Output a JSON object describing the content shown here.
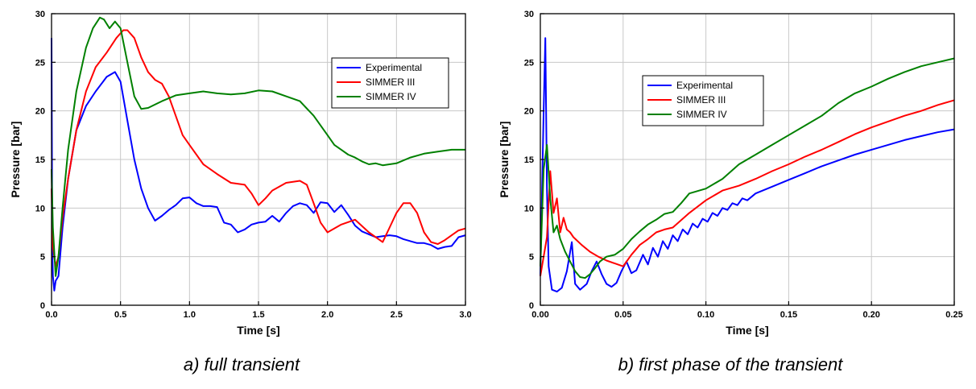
{
  "colors": {
    "Experimental": "#0000ff",
    "SIMMER III": "#ff0000",
    "SIMMER IV": "#008000",
    "grid": "#c8c8c8"
  },
  "chart_data": [
    {
      "type": "line",
      "caption": "a) full transient",
      "xlabel": "Time [s]",
      "ylabel": "Pressure [bar]",
      "xlim": [
        0,
        3.0
      ],
      "ylim": [
        0,
        30
      ],
      "xticks": [
        "0.0",
        "0.5",
        "1.0",
        "1.5",
        "2.0",
        "2.5",
        "3.0"
      ],
      "yticks": [
        "0",
        "5",
        "10",
        "15",
        "20",
        "25",
        "30"
      ],
      "grid": true,
      "legend": "upper-right",
      "series": [
        {
          "name": "Experimental",
          "x": [
            0,
            0.005,
            0.01,
            0.02,
            0.03,
            0.05,
            0.08,
            0.12,
            0.18,
            0.25,
            0.32,
            0.4,
            0.46,
            0.5,
            0.55,
            0.6,
            0.65,
            0.7,
            0.75,
            0.8,
            0.85,
            0.9,
            0.95,
            1.0,
            1.05,
            1.1,
            1.15,
            1.2,
            1.25,
            1.3,
            1.35,
            1.4,
            1.45,
            1.5,
            1.55,
            1.6,
            1.65,
            1.7,
            1.75,
            1.8,
            1.85,
            1.9,
            1.95,
            2.0,
            2.05,
            2.1,
            2.15,
            2.2,
            2.25,
            2.3,
            2.35,
            2.4,
            2.45,
            2.5,
            2.55,
            2.6,
            2.65,
            2.7,
            2.75,
            2.8,
            2.85,
            2.9,
            2.95,
            3.0
          ],
          "y": [
            27.5,
            6,
            3,
            1.5,
            2.5,
            3,
            8,
            13,
            18,
            20.5,
            22,
            23.5,
            24,
            23,
            19,
            15,
            12,
            10,
            8.7,
            9.2,
            9.8,
            10.3,
            11,
            11.1,
            10.5,
            10.2,
            10.2,
            10.1,
            8.5,
            8.3,
            7.5,
            7.8,
            8.3,
            8.5,
            8.6,
            9.2,
            8.6,
            9.5,
            10.2,
            10.5,
            10.3,
            9.5,
            10.6,
            10.5,
            9.6,
            10.3,
            9.3,
            8.2,
            7.6,
            7.3,
            7.0,
            7.1,
            7.2,
            7.1,
            6.8,
            6.6,
            6.4,
            6.4,
            6.2,
            5.8,
            6.0,
            6.1,
            7.0,
            7.2
          ]
        },
        {
          "name": "SIMMER III",
          "x": [
            0,
            0.01,
            0.03,
            0.05,
            0.08,
            0.12,
            0.18,
            0.25,
            0.32,
            0.4,
            0.47,
            0.52,
            0.55,
            0.6,
            0.65,
            0.7,
            0.75,
            0.8,
            0.85,
            0.9,
            0.95,
            1.0,
            1.1,
            1.2,
            1.3,
            1.4,
            1.45,
            1.5,
            1.55,
            1.6,
            1.7,
            1.8,
            1.85,
            1.9,
            1.95,
            2.0,
            2.1,
            2.2,
            2.3,
            2.4,
            2.45,
            2.5,
            2.55,
            2.6,
            2.65,
            2.7,
            2.75,
            2.8,
            2.85,
            2.9,
            2.95,
            3.0
          ],
          "y": [
            12,
            6,
            4,
            5,
            9,
            13,
            18,
            22,
            24.5,
            26,
            27.5,
            28.3,
            28.3,
            27.5,
            25.5,
            24,
            23.2,
            22.8,
            21.5,
            19.5,
            17.5,
            16.5,
            14.5,
            13.5,
            12.6,
            12.4,
            11.5,
            10.3,
            11,
            11.8,
            12.6,
            12.8,
            12.4,
            10.5,
            8.5,
            7.5,
            8.3,
            8.8,
            7.5,
            6.5,
            8.0,
            9.5,
            10.5,
            10.5,
            9.5,
            7.5,
            6.5,
            6.3,
            6.7,
            7.2,
            7.7,
            7.9
          ]
        },
        {
          "name": "SIMMER IV",
          "x": [
            0,
            0.01,
            0.03,
            0.05,
            0.08,
            0.12,
            0.18,
            0.25,
            0.3,
            0.35,
            0.38,
            0.42,
            0.46,
            0.5,
            0.55,
            0.6,
            0.65,
            0.7,
            0.8,
            0.9,
            1.0,
            1.1,
            1.2,
            1.3,
            1.4,
            1.5,
            1.6,
            1.7,
            1.8,
            1.9,
            2.0,
            2.05,
            2.1,
            2.15,
            2.2,
            2.25,
            2.3,
            2.35,
            2.4,
            2.5,
            2.6,
            2.7,
            2.8,
            2.9,
            3.0
          ],
          "y": [
            14,
            8,
            3,
            5,
            10,
            16,
            22,
            26.5,
            28.5,
            29.6,
            29.4,
            28.5,
            29.2,
            28.5,
            25,
            21.5,
            20.2,
            20.3,
            21,
            21.6,
            21.8,
            22,
            21.8,
            21.7,
            21.8,
            22.1,
            22,
            21.5,
            21,
            19.5,
            17.5,
            16.5,
            16,
            15.5,
            15.2,
            14.8,
            14.5,
            14.6,
            14.4,
            14.6,
            15.2,
            15.6,
            15.8,
            16,
            16
          ]
        }
      ]
    },
    {
      "type": "line",
      "caption": "b) first phase of the transient",
      "xlabel": "Time [s]",
      "ylabel": "Pressure [bar]",
      "xlim": [
        0,
        0.25
      ],
      "ylim": [
        0,
        30
      ],
      "xticks": [
        "0.00",
        "0.05",
        "0.10",
        "0.15",
        "0.20",
        "0.25"
      ],
      "yticks": [
        "0",
        "5",
        "10",
        "15",
        "20",
        "25",
        "30"
      ],
      "grid": true,
      "legend": "upper-left-center",
      "series": [
        {
          "name": "Experimental",
          "x": [
            0,
            0.002,
            0.003,
            0.004,
            0.005,
            0.007,
            0.01,
            0.013,
            0.016,
            0.019,
            0.021,
            0.024,
            0.028,
            0.031,
            0.034,
            0.037,
            0.04,
            0.043,
            0.046,
            0.049,
            0.052,
            0.055,
            0.058,
            0.062,
            0.065,
            0.068,
            0.071,
            0.074,
            0.077,
            0.08,
            0.083,
            0.086,
            0.089,
            0.092,
            0.095,
            0.098,
            0.101,
            0.104,
            0.107,
            0.11,
            0.113,
            0.116,
            0.119,
            0.122,
            0.125,
            0.13,
            0.14,
            0.15,
            0.16,
            0.17,
            0.18,
            0.19,
            0.2,
            0.21,
            0.22,
            0.23,
            0.24,
            0.25
          ],
          "y": [
            3,
            20,
            27.5,
            12,
            4,
            1.6,
            1.4,
            1.8,
            3.5,
            6.5,
            2.2,
            1.6,
            2.2,
            3.5,
            4.5,
            3.2,
            2.2,
            1.9,
            2.3,
            3.5,
            4.5,
            3.3,
            3.6,
            5.2,
            4.2,
            5.9,
            5.0,
            6.6,
            5.8,
            7.2,
            6.6,
            7.8,
            7.3,
            8.4,
            8.0,
            8.9,
            8.6,
            9.5,
            9.2,
            10.0,
            9.8,
            10.5,
            10.3,
            11.0,
            10.8,
            11.5,
            12.2,
            12.9,
            13.6,
            14.3,
            14.9,
            15.5,
            16.0,
            16.5,
            17.0,
            17.4,
            17.8,
            18.1
          ]
        },
        {
          "name": "SIMMER III",
          "x": [
            0,
            0.002,
            0.004,
            0.006,
            0.008,
            0.01,
            0.012,
            0.014,
            0.016,
            0.018,
            0.02,
            0.025,
            0.03,
            0.035,
            0.04,
            0.045,
            0.05,
            0.055,
            0.06,
            0.065,
            0.07,
            0.075,
            0.08,
            0.09,
            0.1,
            0.11,
            0.12,
            0.13,
            0.14,
            0.15,
            0.16,
            0.17,
            0.18,
            0.19,
            0.2,
            0.21,
            0.22,
            0.23,
            0.24,
            0.25
          ],
          "y": [
            3,
            5,
            7,
            13.8,
            9.5,
            11,
            7.5,
            9,
            7.8,
            7.5,
            7.0,
            6.2,
            5.5,
            5.0,
            4.6,
            4.3,
            4.0,
            5.2,
            6.2,
            6.8,
            7.5,
            7.8,
            8.0,
            9.5,
            10.8,
            11.8,
            12.3,
            13.0,
            13.8,
            14.5,
            15.3,
            16.0,
            16.8,
            17.6,
            18.3,
            18.9,
            19.5,
            20.0,
            20.6,
            21.1
          ]
        },
        {
          "name": "SIMMER IV",
          "x": [
            0,
            0.002,
            0.004,
            0.006,
            0.008,
            0.01,
            0.012,
            0.015,
            0.018,
            0.021,
            0.024,
            0.027,
            0.03,
            0.033,
            0.036,
            0.04,
            0.045,
            0.05,
            0.055,
            0.06,
            0.065,
            0.07,
            0.075,
            0.08,
            0.085,
            0.09,
            0.1,
            0.11,
            0.12,
            0.13,
            0.14,
            0.15,
            0.16,
            0.17,
            0.18,
            0.19,
            0.2,
            0.21,
            0.22,
            0.23,
            0.24,
            0.25
          ],
          "y": [
            4,
            14,
            16.5,
            11,
            7.5,
            8.2,
            6.8,
            5.5,
            4.5,
            3.5,
            2.9,
            2.8,
            3.2,
            3.8,
            4.5,
            5.0,
            5.2,
            5.8,
            6.8,
            7.6,
            8.3,
            8.8,
            9.4,
            9.6,
            10.5,
            11.5,
            12.0,
            13.0,
            14.5,
            15.5,
            16.5,
            17.5,
            18.5,
            19.5,
            20.8,
            21.8,
            22.5,
            23.3,
            24.0,
            24.6,
            25.0,
            25.4
          ]
        }
      ]
    }
  ]
}
